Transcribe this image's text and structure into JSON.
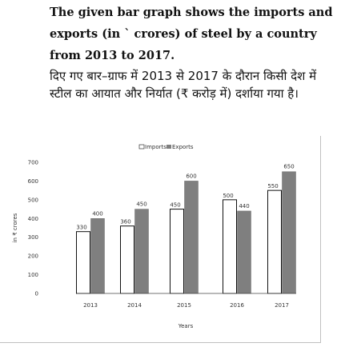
{
  "question": {
    "english": "The given bar graph shows the imports and exports (in ` crores) of steel by a country from 2013 to 2017.",
    "hindi": "दिए गए बार–ग्राफ में 2013 से 2017 के दौरान किसी देश में स्टील का आयात और निर्यात (₹ करोड़ में) दर्शाया गया है।"
  },
  "colors": {
    "imports_fill": "#ffffff",
    "imports_stroke": "#111111",
    "exports_fill": "#7f7f7f",
    "frame": "#bfbfbf"
  },
  "chart_data": {
    "type": "bar",
    "title": "",
    "xlabel": "Years",
    "ylabel": "in ₹ crores",
    "categories": [
      "2013",
      "2014",
      "2015",
      "2016",
      "2017"
    ],
    "series": [
      {
        "name": "Imports",
        "values": [
          330,
          360,
          450,
          500,
          550
        ]
      },
      {
        "name": "Exports",
        "values": [
          400,
          450,
          600,
          440,
          650
        ]
      }
    ],
    "data_labels": {
      "Imports": [
        "330",
        "360",
        "450",
        "500",
        "550"
      ],
      "Exports": [
        "400",
        "450",
        "600",
        "440",
        "650"
      ]
    },
    "yticks": [
      0,
      100,
      200,
      300,
      400,
      500,
      600,
      700
    ],
    "ylim": [
      0,
      700
    ],
    "legend": "top-center",
    "grid": false
  }
}
